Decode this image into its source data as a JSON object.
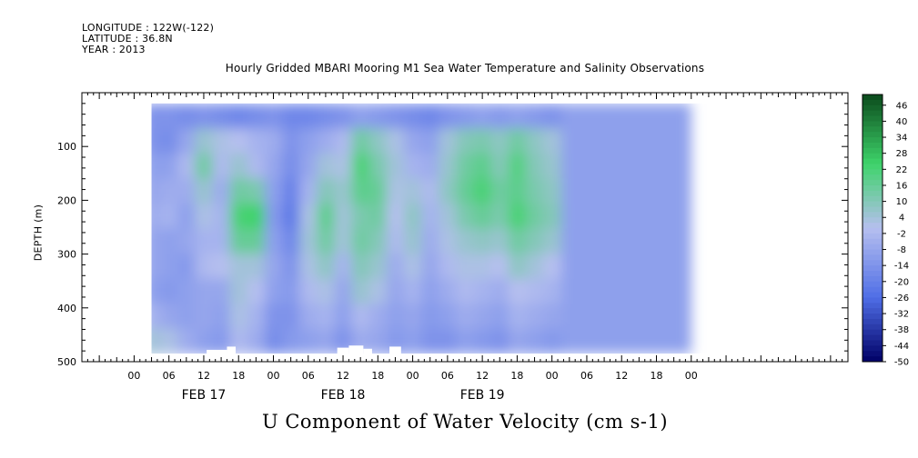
{
  "header": {
    "longitude": "LONGITUDE : 122W(-122)",
    "latitude": "LATITUDE : 36.8N",
    "year": "YEAR : 2013"
  },
  "colors": {
    "low": "#000066",
    "mid_low": "#4f6ee6",
    "zero": "#b6bfef",
    "mid_high": "#3ed36a",
    "high": "#0b4a1c"
  },
  "chart_data": {
    "type": "heatmap",
    "title": "U Component of Water Velocity (cm s-1)",
    "subtitle": "Hourly Gridded MBARI Mooring M1 Sea Water Temperature and Salinity Observations",
    "ylabel": "DEPTH (m)",
    "xlabel": "",
    "x_unit": "hours since FEB 17 00:00, 2013",
    "xlim": [
      -9,
      123
    ],
    "ylim": [
      500,
      0
    ],
    "y_reversed": true,
    "y_ticks": [
      100,
      200,
      300,
      400,
      500
    ],
    "x_tick_labels": [
      {
        "hour": 0,
        "label": "00"
      },
      {
        "hour": 6,
        "label": "06"
      },
      {
        "hour": 12,
        "label": "12"
      },
      {
        "hour": 18,
        "label": "18"
      },
      {
        "hour": 24,
        "label": "00"
      },
      {
        "hour": 30,
        "label": "06"
      },
      {
        "hour": 36,
        "label": "12"
      },
      {
        "hour": 42,
        "label": "18"
      },
      {
        "hour": 48,
        "label": "00"
      },
      {
        "hour": 54,
        "label": "06"
      },
      {
        "hour": 60,
        "label": "12"
      },
      {
        "hour": 66,
        "label": "18"
      },
      {
        "hour": 72,
        "label": "00"
      },
      {
        "hour": 78,
        "label": "06"
      },
      {
        "hour": 84,
        "label": "12"
      },
      {
        "hour": 90,
        "label": "18"
      },
      {
        "hour": 96,
        "label": "00"
      }
    ],
    "date_labels": [
      {
        "hour": 12,
        "label": "FEB 17"
      },
      {
        "hour": 36,
        "label": "FEB 18"
      },
      {
        "hour": 60,
        "label": "FEB 19"
      }
    ],
    "colorbar": {
      "min": -50,
      "max": 50,
      "step": 2,
      "labels": [
        "46",
        "40",
        "34",
        "28",
        "22",
        "16",
        "10",
        "4",
        "-2",
        "-8",
        "-14",
        "-20",
        "-26",
        "-32",
        "-38",
        "-44",
        "-50"
      ]
    },
    "data_extent": {
      "start_hour": 3,
      "end_hour": 96,
      "top_depth": 20,
      "bottom_depth": 485
    },
    "profiles": [
      {
        "hour": 3,
        "values": [
          -14,
          -14,
          -10,
          -8,
          -6,
          -8,
          -8,
          -10,
          -4,
          4
        ]
      },
      {
        "hour": 6,
        "values": [
          -14,
          -16,
          -10,
          -6,
          -4,
          -10,
          -10,
          -12,
          -8,
          2
        ]
      },
      {
        "hour": 9,
        "values": [
          -16,
          -8,
          -2,
          -6,
          -10,
          -8,
          -12,
          -10,
          -10,
          -6
        ]
      },
      {
        "hour": 12,
        "values": [
          -14,
          6,
          14,
          6,
          2,
          -4,
          -2,
          -8,
          -8,
          -10
        ]
      },
      {
        "hour": 15,
        "values": [
          -16,
          2,
          -2,
          -6,
          -4,
          -4,
          0,
          -8,
          -10,
          -12
        ]
      },
      {
        "hour": 18,
        "values": [
          -18,
          0,
          6,
          14,
          22,
          16,
          4,
          4,
          2,
          -2
        ]
      },
      {
        "hour": 21,
        "values": [
          -16,
          -4,
          -2,
          12,
          24,
          16,
          4,
          0,
          -4,
          -6
        ]
      },
      {
        "hour": 24,
        "values": [
          -14,
          -6,
          -8,
          -10,
          -12,
          -10,
          -8,
          -10,
          -14,
          -16
        ]
      },
      {
        "hour": 27,
        "values": [
          -18,
          -14,
          -16,
          -20,
          -22,
          -18,
          -14,
          -12,
          -14,
          -12
        ]
      },
      {
        "hour": 30,
        "values": [
          -18,
          -10,
          -8,
          -4,
          2,
          4,
          2,
          -2,
          -6,
          -10
        ]
      },
      {
        "hour": 33,
        "values": [
          -16,
          -6,
          4,
          10,
          18,
          14,
          8,
          2,
          -4,
          -8
        ]
      },
      {
        "hour": 36,
        "values": [
          -14,
          -2,
          2,
          6,
          4,
          4,
          -4,
          -8,
          -10,
          -14
        ]
      },
      {
        "hour": 39,
        "values": [
          -10,
          14,
          22,
          18,
          12,
          14,
          10,
          6,
          -2,
          -6
        ]
      },
      {
        "hour": 42,
        "values": [
          -12,
          8,
          12,
          16,
          14,
          10,
          6,
          2,
          -6,
          -8
        ]
      },
      {
        "hour": 45,
        "values": [
          -14,
          2,
          4,
          2,
          0,
          -2,
          -6,
          -8,
          -10,
          -12
        ]
      },
      {
        "hour": 48,
        "values": [
          -16,
          -8,
          -4,
          4,
          8,
          6,
          2,
          -4,
          -8,
          -10
        ]
      },
      {
        "hour": 51,
        "values": [
          -18,
          -10,
          -6,
          -2,
          -4,
          -6,
          -8,
          -10,
          -12,
          -14
        ]
      },
      {
        "hour": 54,
        "values": [
          -14,
          4,
          6,
          8,
          4,
          2,
          -2,
          -6,
          -10,
          -14
        ]
      },
      {
        "hour": 57,
        "values": [
          -12,
          10,
          14,
          16,
          12,
          6,
          2,
          -2,
          -6,
          -10
        ]
      },
      {
        "hour": 60,
        "values": [
          -10,
          12,
          18,
          22,
          16,
          8,
          2,
          -4,
          -8,
          -12
        ]
      },
      {
        "hour": 63,
        "values": [
          -12,
          8,
          10,
          14,
          12,
          6,
          0,
          -6,
          -10,
          -14
        ]
      },
      {
        "hour": 66,
        "values": [
          -10,
          14,
          20,
          18,
          22,
          14,
          8,
          0,
          -4,
          -8
        ]
      },
      {
        "hour": 69,
        "values": [
          -12,
          8,
          10,
          12,
          14,
          10,
          4,
          -2,
          -6,
          -10
        ]
      },
      {
        "hour": 72,
        "values": [
          -14,
          4,
          6,
          8,
          10,
          6,
          0,
          -4,
          -8,
          -12
        ]
      }
    ]
  }
}
